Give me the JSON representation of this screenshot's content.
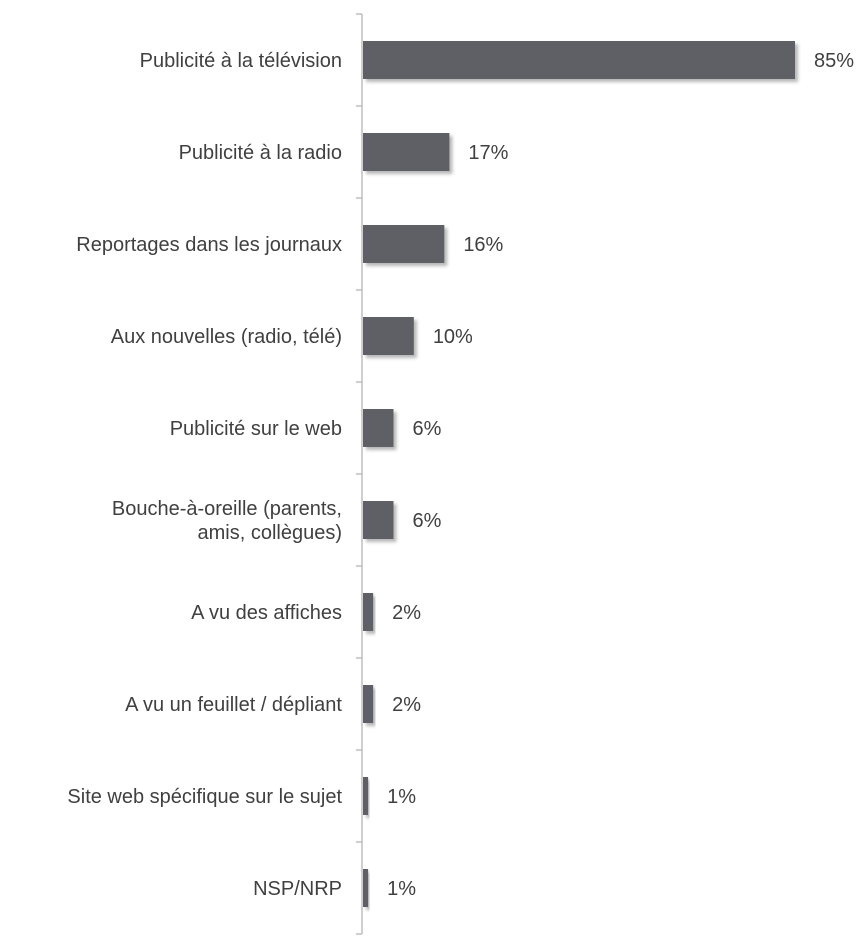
{
  "chart_data": {
    "type": "bar",
    "orientation": "horizontal",
    "categories": [
      [
        "Publicité à la télévision"
      ],
      [
        "Publicité à la radio"
      ],
      [
        "Reportages dans les journaux"
      ],
      [
        "Aux nouvelles (radio, télé)"
      ],
      [
        "Publicité sur le web"
      ],
      [
        "Bouche-à-oreille (parents,",
        "amis, collègues)"
      ],
      [
        "A vu des affiches"
      ],
      [
        "A vu un feuillet / dépliant"
      ],
      [
        "Site web spécifique sur le sujet"
      ],
      [
        "NSP/NRP"
      ]
    ],
    "values": [
      85,
      17,
      16,
      10,
      6,
      6,
      2,
      2,
      1,
      1
    ],
    "value_labels": [
      "85%",
      "17%",
      "16%",
      "10%",
      "6%",
      "6%",
      "2%",
      "2%",
      "1%",
      "1%"
    ],
    "xlim": [
      0,
      85
    ],
    "colors": {
      "bar": "#5f5f66",
      "bar_shadow": "#c8c8c8",
      "axis": "#bfbfbf",
      "text": "#404040"
    }
  }
}
